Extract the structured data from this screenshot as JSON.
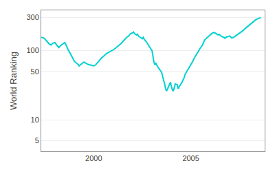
{
  "chart_data": {
    "type": "line",
    "ylabel": "World Ranking",
    "color": "#00d0d0",
    "log": "y",
    "grid": "y",
    "xlim": [
      1997.3,
      2008.8
    ],
    "ylim": [
      3.5,
      380
    ],
    "xticks": [
      2000,
      2005
    ],
    "yticks": [
      5,
      10,
      50,
      100,
      300
    ],
    "x": [
      1997.3,
      1997.45,
      1997.6,
      1997.7,
      1997.8,
      1997.9,
      1998.0,
      1998.1,
      1998.2,
      1998.3,
      1998.4,
      1998.5,
      1998.55,
      1998.6,
      1998.7,
      1998.8,
      1998.9,
      1999.0,
      1999.1,
      1999.2,
      1999.25,
      1999.3,
      1999.4,
      1999.5,
      1999.6,
      1999.7,
      1999.8,
      1999.9,
      2000.0,
      2000.1,
      2000.2,
      2000.3,
      2000.4,
      2000.5,
      2000.6,
      2000.65,
      2000.7,
      2000.8,
      2000.9,
      2001.0,
      2001.1,
      2001.2,
      2001.3,
      2001.4,
      2001.5,
      2001.6,
      2001.7,
      2001.8,
      2001.85,
      2001.9,
      2002.0,
      2002.05,
      2002.1,
      2002.2,
      2002.25,
      2002.3,
      2002.4,
      2002.45,
      2002.5,
      2002.55,
      2002.6,
      2002.7,
      2002.8,
      2002.9,
      2003.0,
      2003.05,
      2003.1,
      2003.15,
      2003.2,
      2003.3,
      2003.35,
      2003.4,
      2003.5,
      2003.55,
      2003.6,
      2003.65,
      2003.7,
      2003.75,
      2003.8,
      2003.9,
      2003.95,
      2004.0,
      2004.05,
      2004.1,
      2004.15,
      2004.2,
      2004.3,
      2004.35,
      2004.4,
      2004.5,
      2004.55,
      2004.6,
      2004.65,
      2004.7,
      2004.8,
      2004.9,
      2005.0,
      2005.1,
      2005.2,
      2005.3,
      2005.4,
      2005.5,
      2005.6,
      2005.65,
      2005.7,
      2005.8,
      2005.9,
      2006.0,
      2006.1,
      2006.2,
      2006.25,
      2006.3,
      2006.35,
      2006.4,
      2006.45,
      2006.5,
      2006.55,
      2006.6,
      2006.7,
      2006.75,
      2006.8,
      2006.9,
      2007.0,
      2007.05,
      2007.1,
      2007.2,
      2007.3,
      2007.4,
      2007.5,
      2007.6,
      2007.7,
      2007.8,
      2007.9,
      2008.0,
      2008.1,
      2008.2,
      2008.3,
      2008.4,
      2008.5,
      2008.6
    ],
    "values": [
      155,
      150,
      135,
      125,
      120,
      128,
      130,
      120,
      110,
      118,
      125,
      130,
      125,
      115,
      100,
      90,
      78,
      70,
      66,
      63,
      60,
      62,
      65,
      68,
      65,
      63,
      62,
      61,
      60,
      62,
      67,
      72,
      78,
      82,
      88,
      90,
      92,
      95,
      98,
      102,
      107,
      112,
      118,
      125,
      135,
      145,
      155,
      162,
      168,
      175,
      180,
      185,
      175,
      168,
      172,
      162,
      155,
      152,
      148,
      155,
      145,
      135,
      120,
      110,
      100,
      80,
      68,
      62,
      65,
      58,
      55,
      52,
      48,
      42,
      38,
      33,
      28,
      26,
      28,
      32,
      35,
      30,
      27,
      26,
      30,
      33,
      32,
      28,
      30,
      33,
      35,
      38,
      40,
      45,
      50,
      55,
      62,
      70,
      80,
      90,
      100,
      110,
      120,
      130,
      140,
      150,
      160,
      170,
      178,
      182,
      178,
      175,
      170,
      168,
      172,
      168,
      163,
      158,
      155,
      150,
      155,
      158,
      162,
      157,
      152,
      155,
      162,
      170,
      178,
      185,
      195,
      208,
      220,
      235,
      248,
      260,
      272,
      283,
      293,
      296
    ]
  }
}
